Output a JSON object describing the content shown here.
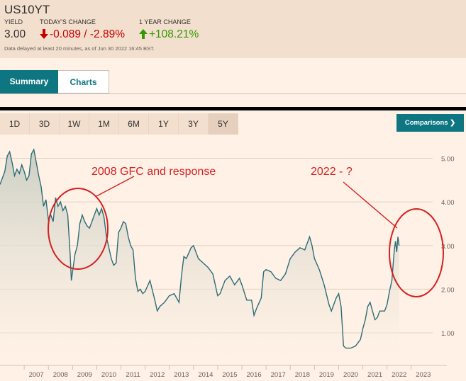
{
  "header": {
    "symbol": "US10YT",
    "yield_label": "YIELD",
    "yield_value": "3.00",
    "change_label": "TODAY'S CHANGE",
    "change_value": "-0.089 / -2.89%",
    "year_label": "1 YEAR CHANGE",
    "year_value": "+108.21%",
    "disclaimer": "Data delayed at least 20 minutes, as of Jun 30 2022 16:45 BST.",
    "colors": {
      "down": "#cc0000",
      "up": "#339900"
    },
    "icons": {
      "down": "arrow-down-icon",
      "up": "arrow-up-icon"
    }
  },
  "tabs": [
    {
      "label": "Summary",
      "active": true
    },
    {
      "label": "Charts",
      "active": false
    }
  ],
  "ranges": [
    {
      "label": "1D"
    },
    {
      "label": "3D"
    },
    {
      "label": "1W"
    },
    {
      "label": "1M"
    },
    {
      "label": "6M"
    },
    {
      "label": "1Y"
    },
    {
      "label": "3Y"
    },
    {
      "label": "5Y",
      "active": true
    }
  ],
  "comparisons_label": "Comparisons",
  "comparisons_icon": "chevron-right-icon",
  "annotations": {
    "gfc": "2008 GFC and response",
    "now": "2022 - ?",
    "color": "#d42020"
  },
  "chart_data": {
    "type": "area",
    "x_ticks": [
      "2007",
      "2008",
      "2009",
      "2010",
      "2011",
      "2012",
      "2013",
      "2014",
      "2015",
      "2016",
      "2017",
      "2018",
      "2019",
      "2020",
      "2021",
      "2022",
      "2023"
    ],
    "y_ticks": [
      "5.00",
      "4.00",
      "3.00",
      "2.00",
      "1.00"
    ],
    "ylim": [
      0.4,
      5.3
    ],
    "xlim": [
      2006.0,
      2023.3
    ],
    "grid": true,
    "line_color": "#2b6d78",
    "series": [
      {
        "x": [
          2006.0,
          2006.1,
          2006.2,
          2006.3,
          2006.4,
          2006.5,
          2006.55,
          2006.6,
          2006.7,
          2006.8,
          2006.9,
          2007.0,
          2007.1,
          2007.2,
          2007.3,
          2007.4,
          2007.45,
          2007.5,
          2007.6,
          2007.7,
          2007.8,
          2007.9,
          2008.0,
          2008.1,
          2008.2,
          2008.3,
          2008.4,
          2008.5,
          2008.6,
          2008.7,
          2008.8,
          2008.9,
          2008.95,
          2009.0,
          2009.1,
          2009.2,
          2009.3,
          2009.4,
          2009.5,
          2009.6,
          2009.7,
          2009.8,
          2009.9,
          2010.0,
          2010.1,
          2010.2,
          2010.3,
          2010.4,
          2010.5,
          2010.6,
          2010.7,
          2010.8,
          2010.9,
          2011.0,
          2011.1,
          2011.2,
          2011.3,
          2011.4,
          2011.5,
          2011.6,
          2011.7,
          2011.8,
          2011.9,
          2012.0,
          2012.2,
          2012.4,
          2012.5,
          2012.6,
          2012.8,
          2013.0,
          2013.2,
          2013.4,
          2013.5,
          2013.6,
          2013.7,
          2013.9,
          2014.0,
          2014.2,
          2014.4,
          2014.6,
          2014.8,
          2015.0,
          2015.1,
          2015.3,
          2015.5,
          2015.7,
          2015.9,
          2016.0,
          2016.2,
          2016.4,
          2016.5,
          2016.6,
          2016.8,
          2016.9,
          2017.0,
          2017.2,
          2017.4,
          2017.6,
          2017.8,
          2018.0,
          2018.2,
          2018.4,
          2018.6,
          2018.8,
          2018.9,
          2019.0,
          2019.2,
          2019.4,
          2019.6,
          2019.7,
          2019.9,
          2020.0,
          2020.1,
          2020.2,
          2020.3,
          2020.5,
          2020.7,
          2020.9,
          2021.0,
          2021.1,
          2021.2,
          2021.3,
          2021.5,
          2021.6,
          2021.7,
          2021.9,
          2022.0,
          2022.1,
          2022.2,
          2022.3,
          2022.35,
          2022.4,
          2022.45,
          2022.5
        ],
        "values": [
          4.4,
          4.55,
          4.7,
          5.05,
          5.15,
          4.9,
          4.75,
          4.6,
          4.75,
          4.65,
          4.85,
          4.7,
          4.5,
          4.6,
          5.1,
          5.2,
          5.05,
          4.9,
          4.6,
          4.35,
          3.9,
          4.05,
          3.6,
          3.7,
          3.55,
          4.1,
          3.9,
          4.0,
          3.8,
          3.9,
          3.7,
          2.8,
          2.2,
          2.4,
          2.8,
          3.0,
          3.5,
          3.7,
          3.55,
          3.45,
          3.4,
          3.55,
          3.7,
          3.85,
          3.7,
          3.85,
          3.65,
          3.2,
          2.95,
          2.7,
          2.55,
          2.6,
          3.3,
          3.4,
          3.55,
          3.5,
          3.2,
          3.0,
          2.9,
          2.25,
          1.95,
          2.0,
          1.9,
          1.95,
          2.2,
          1.75,
          1.5,
          1.6,
          1.7,
          1.85,
          1.9,
          1.7,
          2.3,
          2.75,
          2.7,
          2.95,
          3.0,
          2.7,
          2.6,
          2.5,
          2.35,
          1.85,
          1.9,
          2.2,
          2.3,
          2.1,
          2.25,
          2.1,
          1.75,
          1.75,
          1.4,
          1.55,
          1.8,
          2.4,
          2.45,
          2.4,
          2.25,
          2.2,
          2.35,
          2.7,
          2.85,
          2.95,
          2.9,
          3.2,
          3.0,
          2.7,
          2.45,
          2.1,
          1.65,
          1.5,
          1.8,
          1.9,
          1.6,
          0.7,
          0.65,
          0.65,
          0.7,
          0.85,
          1.1,
          1.3,
          1.6,
          1.7,
          1.3,
          1.35,
          1.5,
          1.5,
          1.65,
          1.95,
          2.2,
          2.9,
          3.1,
          2.85,
          3.2,
          3.0
        ]
      }
    ]
  }
}
